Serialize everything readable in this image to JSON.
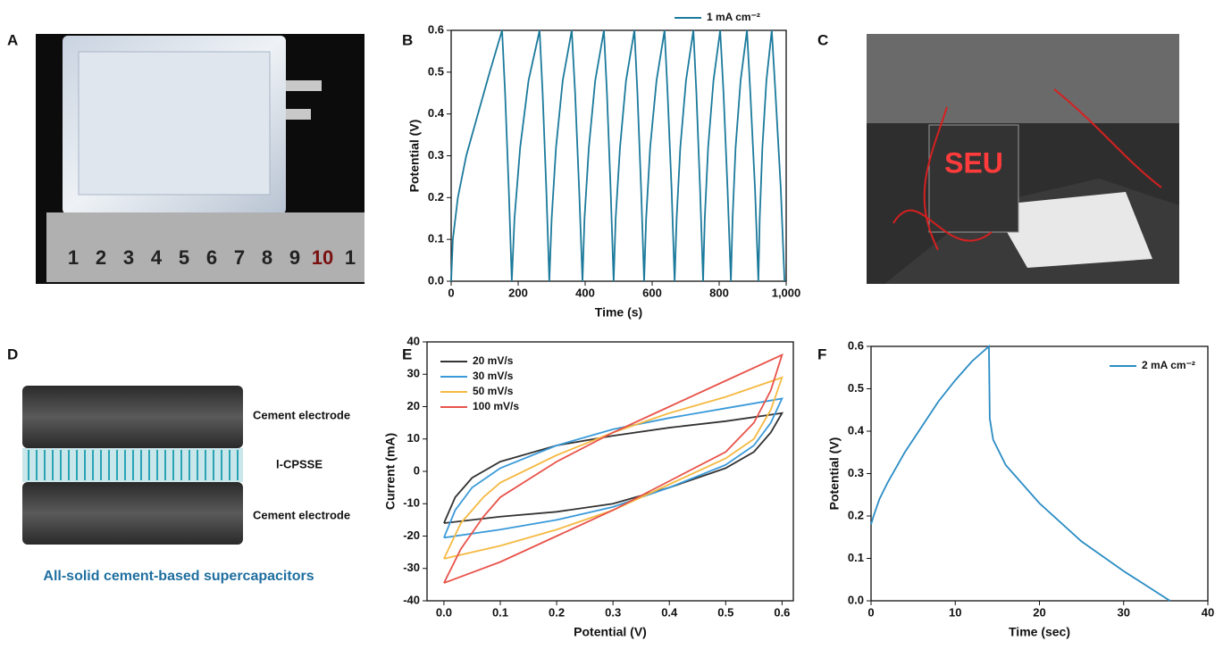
{
  "panel_labels": [
    "A",
    "B",
    "C",
    "D",
    "E",
    "F"
  ],
  "photo_a": {
    "ruler_labels": [
      "1",
      "2",
      "3",
      "4",
      "5",
      "6",
      "7",
      "8",
      "9",
      "10",
      "1"
    ]
  },
  "photo_c": {
    "display_text": "SEU"
  },
  "diagram_d": {
    "top_label": "Cement electrode",
    "middle_label": "l-CPSSE",
    "bottom_label": "Cement electrode",
    "caption": "All-solid cement-based supercapacitors"
  },
  "chart_data": [
    {
      "type": "line",
      "xlabel": "Time (s)",
      "ylabel": "Potential (V)",
      "legend": "above",
      "xlim": [
        0,
        1000
      ],
      "ylim": [
        0,
        0.6
      ],
      "xticks": [
        0,
        200,
        400,
        600,
        800,
        {
          "value": 1000,
          "label": "1,000"
        }
      ],
      "yticks": [
        {
          "value": 0,
          "label": "0.0"
        },
        0.1,
        0.2,
        0.3,
        0.4,
        0.5,
        0.6
      ],
      "x": [
        0,
        5,
        20,
        45,
        80,
        115,
        152,
        161,
        172,
        181,
        189,
        206,
        231,
        264,
        273,
        284,
        293,
        300,
        313,
        333,
        360,
        370,
        382,
        392,
        398,
        411,
        430,
        456,
        465,
        476,
        485,
        491,
        504,
        522,
        547,
        556,
        567,
        576,
        582,
        594,
        613,
        637,
        646,
        658,
        667,
        673,
        684,
        701,
        723,
        732,
        743,
        752,
        757,
        767,
        783,
        803,
        813,
        825,
        835,
        840,
        849,
        864,
        883,
        893,
        907,
        917,
        921,
        929,
        941,
        957,
        968,
        984,
        995
      ],
      "series": [
        {
          "name": "1 mA cm⁻²",
          "color": "#1b7a9c",
          "values": [
            0,
            0.1,
            0.2,
            0.3,
            0.4,
            0.5,
            0.6,
            0.45,
            0.22,
            0,
            0.15,
            0.32,
            0.48,
            0.6,
            0.45,
            0.22,
            0,
            0.15,
            0.32,
            0.48,
            0.6,
            0.45,
            0.22,
            0,
            0.15,
            0.32,
            0.48,
            0.6,
            0.45,
            0.22,
            0,
            0.15,
            0.32,
            0.48,
            0.6,
            0.45,
            0.22,
            0,
            0.15,
            0.32,
            0.48,
            0.6,
            0.45,
            0.22,
            0,
            0.15,
            0.32,
            0.48,
            0.6,
            0.45,
            0.22,
            0,
            0.15,
            0.32,
            0.48,
            0.6,
            0.45,
            0.22,
            0,
            0.15,
            0.32,
            0.48,
            0.6,
            0.45,
            0.22,
            0,
            0.15,
            0.32,
            0.48,
            0.6,
            0.45,
            0.22,
            0
          ]
        }
      ]
    },
    {
      "type": "line",
      "xlabel": "Potential (V)",
      "ylabel": "Current (mA)",
      "legend": "upper left",
      "xlim": [
        -0.03,
        0.62
      ],
      "ylim": [
        -40,
        40
      ],
      "xticks": [
        {
          "value": 0,
          "label": "0.0"
        },
        0.1,
        0.2,
        0.3,
        0.4,
        0.5,
        0.6
      ],
      "yticks": [
        -40,
        -30,
        -20,
        -10,
        0,
        10,
        20,
        30,
        40
      ],
      "series": [
        {
          "name": "20 mV/s",
          "color": "#333333",
          "x": [
            0,
            0.02,
            0.05,
            0.1,
            0.2,
            0.3,
            0.4,
            0.5,
            0.6,
            0.58,
            0.55,
            0.5,
            0.4,
            0.3,
            0.2,
            0.1,
            0
          ],
          "values": [
            -16,
            -8,
            -2,
            3,
            8,
            11,
            13.5,
            15.5,
            18,
            12,
            6,
            1,
            -5,
            -10,
            -12.5,
            -14,
            -16
          ]
        },
        {
          "name": "30 mV/s",
          "color": "#3a9ad9",
          "x": [
            0,
            0.02,
            0.05,
            0.1,
            0.2,
            0.3,
            0.4,
            0.5,
            0.6,
            0.58,
            0.55,
            0.5,
            0.4,
            0.3,
            0.2,
            0.1,
            0
          ],
          "values": [
            -20.5,
            -12,
            -5,
            1,
            8,
            13,
            16.5,
            19.5,
            22.5,
            15,
            8,
            2,
            -5,
            -11,
            -15,
            -18,
            -20.5
          ]
        },
        {
          "name": "50 mV/s",
          "color": "#f5b942",
          "x": [
            0,
            0.03,
            0.07,
            0.1,
            0.2,
            0.3,
            0.4,
            0.5,
            0.6,
            0.58,
            0.55,
            0.5,
            0.4,
            0.3,
            0.2,
            0.1,
            0
          ],
          "values": [
            -27,
            -16,
            -8,
            -3.5,
            5,
            12,
            18,
            23,
            29,
            19,
            10,
            4,
            -4,
            -12,
            -18,
            -23,
            -27
          ]
        },
        {
          "name": "100 mV/s",
          "color": "#e8534a",
          "x": [
            0,
            0.03,
            0.07,
            0.1,
            0.2,
            0.3,
            0.4,
            0.5,
            0.6,
            0.58,
            0.55,
            0.5,
            0.4,
            0.3,
            0.2,
            0.1,
            0
          ],
          "values": [
            -34.5,
            -24,
            -14,
            -8,
            3,
            12,
            20,
            28,
            36,
            25,
            15,
            6,
            -3,
            -12,
            -20,
            -28,
            -34.5
          ]
        }
      ]
    },
    {
      "type": "line",
      "xlabel": "Time (sec)",
      "ylabel": "Potential (V)",
      "legend": "upper right",
      "xlim": [
        0,
        40
      ],
      "ylim": [
        0,
        0.6
      ],
      "xticks": [
        0,
        10,
        20,
        30,
        40
      ],
      "yticks": [
        {
          "value": 0,
          "label": "0.0"
        },
        0.1,
        0.2,
        0.3,
        0.4,
        0.5,
        0.6
      ],
      "x": [
        0,
        0.3,
        1,
        2,
        4,
        6,
        8,
        10,
        12,
        14,
        14.1,
        14.5,
        16,
        20,
        25,
        30,
        35.5
      ],
      "series": [
        {
          "name": "2 mA cm⁻²",
          "color": "#2a8cc4",
          "values": [
            0.18,
            0.2,
            0.24,
            0.28,
            0.35,
            0.41,
            0.47,
            0.52,
            0.565,
            0.6,
            0.43,
            0.38,
            0.32,
            0.23,
            0.14,
            0.07,
            0
          ]
        }
      ]
    }
  ]
}
